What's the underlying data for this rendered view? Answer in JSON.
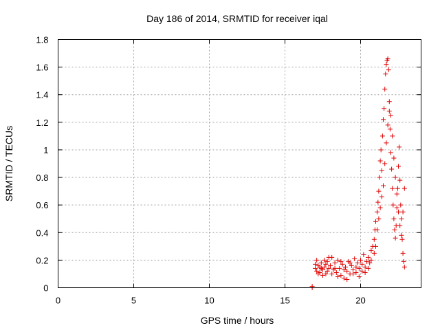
{
  "chart_data": {
    "type": "scatter",
    "title": "Day 186 of 2014, SRMTID for receiver iqal",
    "xlabel": "GPS time / hours",
    "ylabel": "SRMTID / TECUs",
    "xlim": [
      0,
      24
    ],
    "ylim": [
      0,
      1.8
    ],
    "xticks": [
      0,
      5,
      10,
      15,
      20
    ],
    "xtick_labels": [
      "0",
      "5",
      "10",
      "15",
      "20"
    ],
    "yticks": [
      0,
      0.2,
      0.4,
      0.6,
      0.8,
      1.0,
      1.2,
      1.4,
      1.6,
      1.8
    ],
    "ytick_labels": [
      "0",
      "0.2",
      "0.4",
      "0.6",
      "0.8",
      "1",
      "1.2",
      "1.4",
      "1.6",
      "1.8"
    ],
    "grid": true,
    "marker": "+",
    "color": "#e00000",
    "series": [
      {
        "name": "SRMTID",
        "points": [
          [
            16.8,
            0.0
          ],
          [
            16.8,
            0.01
          ],
          [
            17.0,
            0.14
          ],
          [
            17.1,
            0.12
          ],
          [
            17.2,
            0.16
          ],
          [
            17.3,
            0.11
          ],
          [
            17.4,
            0.18
          ],
          [
            17.5,
            0.13
          ],
          [
            17.6,
            0.15
          ],
          [
            17.7,
            0.1
          ],
          [
            17.8,
            0.19
          ],
          [
            17.9,
            0.14
          ],
          [
            17.0,
            0.17
          ],
          [
            17.2,
            0.1
          ],
          [
            17.4,
            0.14
          ],
          [
            17.6,
            0.2
          ],
          [
            17.8,
            0.12
          ],
          [
            18.0,
            0.16
          ],
          [
            18.1,
            0.22
          ],
          [
            18.2,
            0.13
          ],
          [
            18.3,
            0.18
          ],
          [
            18.4,
            0.11
          ],
          [
            18.5,
            0.2
          ],
          [
            18.6,
            0.14
          ],
          [
            18.7,
            0.09
          ],
          [
            18.8,
            0.17
          ],
          [
            18.9,
            0.07
          ],
          [
            19.0,
            0.15
          ],
          [
            19.1,
            0.12
          ],
          [
            19.2,
            0.19
          ],
          [
            19.3,
            0.1
          ],
          [
            19.4,
            0.16
          ],
          [
            19.5,
            0.13
          ],
          [
            19.6,
            0.21
          ],
          [
            19.7,
            0.11
          ],
          [
            19.8,
            0.18
          ],
          [
            19.9,
            0.14
          ],
          [
            20.0,
            0.2
          ],
          [
            20.1,
            0.12
          ],
          [
            20.2,
            0.24
          ],
          [
            20.3,
            0.15
          ],
          [
            20.4,
            0.19
          ],
          [
            20.5,
            0.22
          ],
          [
            20.6,
            0.18
          ],
          [
            20.7,
            0.27
          ],
          [
            20.8,
            0.3
          ],
          [
            20.9,
            0.35
          ],
          [
            20.95,
            0.42
          ],
          [
            21.0,
            0.48
          ],
          [
            21.1,
            0.55
          ],
          [
            21.15,
            0.62
          ],
          [
            21.2,
            0.7
          ],
          [
            21.25,
            0.8
          ],
          [
            21.3,
            0.92
          ],
          [
            21.35,
            1.0
          ],
          [
            21.4,
            0.85
          ],
          [
            21.45,
            1.1
          ],
          [
            21.5,
            1.22
          ],
          [
            21.55,
            1.3
          ],
          [
            21.6,
            1.44
          ],
          [
            21.65,
            1.55
          ],
          [
            21.7,
            1.62
          ],
          [
            21.75,
            1.65
          ],
          [
            21.8,
            1.66
          ],
          [
            21.85,
            1.58
          ],
          [
            21.9,
            1.28
          ],
          [
            21.95,
            1.15
          ],
          [
            22.0,
            0.98
          ],
          [
            22.05,
            0.86
          ],
          [
            22.1,
            0.72
          ],
          [
            22.15,
            0.6
          ],
          [
            22.2,
            0.5
          ],
          [
            22.25,
            0.42
          ],
          [
            22.3,
            0.36
          ],
          [
            22.35,
            0.45
          ],
          [
            22.4,
            0.58
          ],
          [
            22.45,
            0.72
          ],
          [
            22.5,
            0.88
          ],
          [
            22.55,
            1.02
          ],
          [
            22.6,
            0.78
          ],
          [
            22.65,
            0.6
          ],
          [
            22.7,
            0.5
          ],
          [
            22.75,
            0.35
          ],
          [
            22.8,
            0.25
          ],
          [
            22.85,
            0.19
          ],
          [
            22.9,
            0.15
          ],
          [
            21.0,
            0.3
          ],
          [
            21.1,
            0.42
          ],
          [
            21.2,
            0.5
          ],
          [
            21.3,
            0.58
          ],
          [
            21.4,
            0.66
          ],
          [
            21.5,
            0.74
          ],
          [
            21.6,
            0.9
          ],
          [
            21.7,
            1.05
          ],
          [
            21.8,
            1.18
          ],
          [
            21.9,
            1.35
          ],
          [
            22.0,
            1.25
          ],
          [
            22.1,
            1.1
          ],
          [
            22.2,
            0.94
          ],
          [
            22.3,
            0.8
          ],
          [
            22.4,
            0.68
          ],
          [
            22.5,
            0.55
          ],
          [
            22.6,
            0.45
          ],
          [
            22.7,
            0.38
          ],
          [
            22.8,
            0.55
          ],
          [
            22.9,
            0.72
          ],
          [
            17.1,
            0.2
          ],
          [
            17.3,
            0.15
          ],
          [
            17.5,
            0.09
          ],
          [
            17.7,
            0.17
          ],
          [
            17.9,
            0.22
          ],
          [
            18.1,
            0.1
          ],
          [
            18.3,
            0.14
          ],
          [
            18.5,
            0.08
          ],
          [
            18.7,
            0.19
          ],
          [
            18.9,
            0.13
          ],
          [
            19.1,
            0.06
          ],
          [
            19.3,
            0.18
          ],
          [
            19.5,
            0.1
          ],
          [
            19.7,
            0.15
          ],
          [
            19.9,
            0.08
          ],
          [
            20.1,
            0.17
          ],
          [
            20.3,
            0.11
          ],
          [
            20.5,
            0.14
          ],
          [
            20.7,
            0.2
          ],
          [
            20.9,
            0.25
          ]
        ]
      }
    ]
  }
}
